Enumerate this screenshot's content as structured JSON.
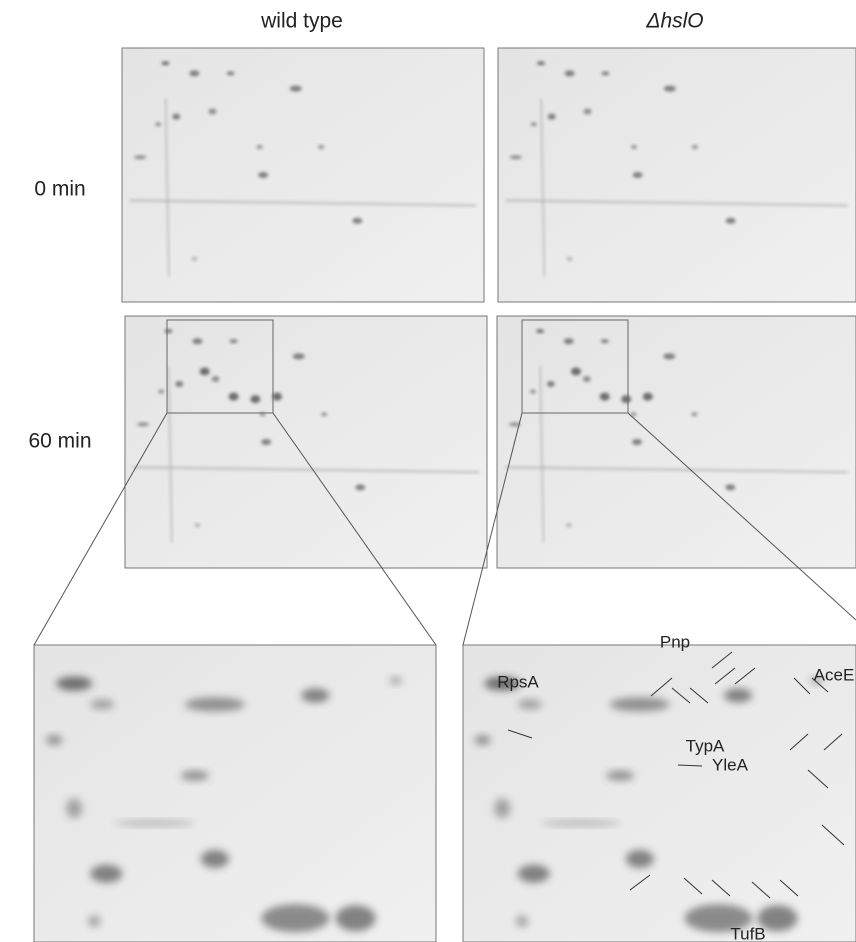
{
  "columns": [
    "wild type",
    "ΔhslO"
  ],
  "rows": [
    "0 min",
    "60 min"
  ],
  "protein_labels": [
    "Pnp",
    "RpsA",
    "AceE",
    "TypA",
    "YleA",
    "TufB"
  ]
}
